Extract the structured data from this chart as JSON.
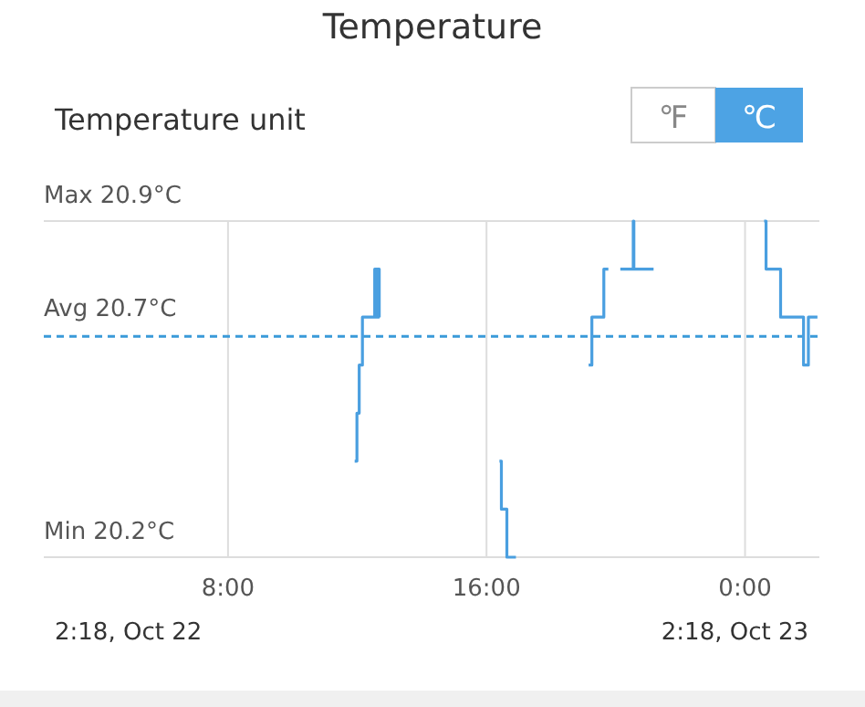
{
  "chart_data": {
    "type": "step",
    "title": "Temperature",
    "subtitle": "Temperature unit",
    "annotations": [
      "2:18, Oct 22",
      "2:18, Oct 23",
      "℉",
      "℃",
      "Max",
      "Min"
    ],
    "x": [
      11.92,
      11.99,
      12.06,
      12.16,
      12.54,
      12.56,
      12.58,
      12.6,
      12.62,
      12.64,
      12.66,
      12.68,
      12.7,
      16.4,
      16.46,
      16.63,
      16.91,
      17.0,
      19.16,
      19.26,
      19.63,
      19.77,
      19.9,
      20.14,
      20.54,
      20.56,
      21.17,
      21.3,
      24.59,
      24.65,
      25.1,
      25.81,
      25.96,
      26.24
    ],
    "series": [
      {
        "color": "#4a9fe0",
        "values": [
          20.4,
          20.5,
          20.6,
          20.7,
          20.8,
          20.7,
          20.8,
          20.7,
          20.8,
          20.7,
          20.8,
          20.7,
          null,
          20.4,
          20.3,
          20.2,
          20.2,
          null,
          20.6,
          20.7,
          20.8,
          20.8,
          null,
          20.8,
          20.9,
          20.8,
          20.8,
          null,
          20.9,
          20.8,
          20.7,
          20.6,
          20.7,
          20.7
        ]
      }
    ],
    "xlim": [
      2.3,
      26.3
    ],
    "xticks": [
      {
        "value": 8,
        "label": "8:00"
      },
      {
        "value": 16,
        "label": "16:00"
      },
      {
        "value": 24,
        "label": "0:00"
      }
    ],
    "ylim": [
      20.2,
      20.9
    ],
    "yticks": [
      {
        "value": 20.9,
        "label": "20.9°C"
      },
      {
        "value": 20.2,
        "label": "20.2°C"
      }
    ],
    "ref_lines": [
      {
        "axis": "y",
        "value": 20.66,
        "label": "Avg 20.7°C",
        "color": "#3a9ad9",
        "line_style": "dashed"
      }
    ],
    "grid": true
  }
}
